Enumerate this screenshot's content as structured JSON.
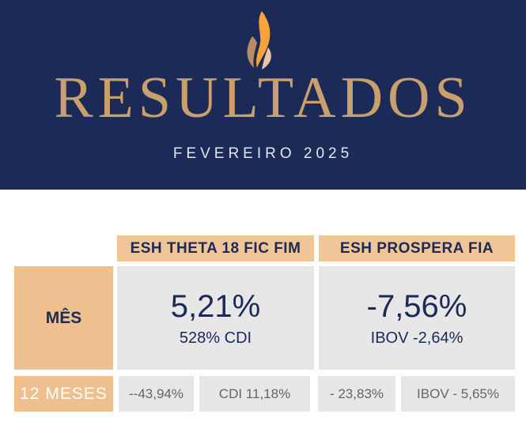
{
  "header": {
    "title": "RESULTADOS",
    "subtitle": "FEVEREIRO 2025",
    "colors": {
      "background": "#1b2a57",
      "gold": "#c9a06c",
      "flame": "#f5a33a"
    },
    "logo_icon": "flame-icon"
  },
  "table": {
    "columns": [
      "ESH THETA 18 FIC FIM",
      "ESH PROSPERA FIA"
    ],
    "rows": {
      "month": {
        "label": "MÊS",
        "funds": [
          {
            "value": "5,21%",
            "benchmark": "528% CDI"
          },
          {
            "value": "-7,56%",
            "benchmark": "IBOV -2,64%"
          }
        ]
      },
      "year": {
        "label": "12 MESES",
        "cells": [
          "--43,94%",
          "CDI  11,18%",
          "- 23,83%",
          "IBOV  - 5,65%"
        ]
      }
    }
  }
}
